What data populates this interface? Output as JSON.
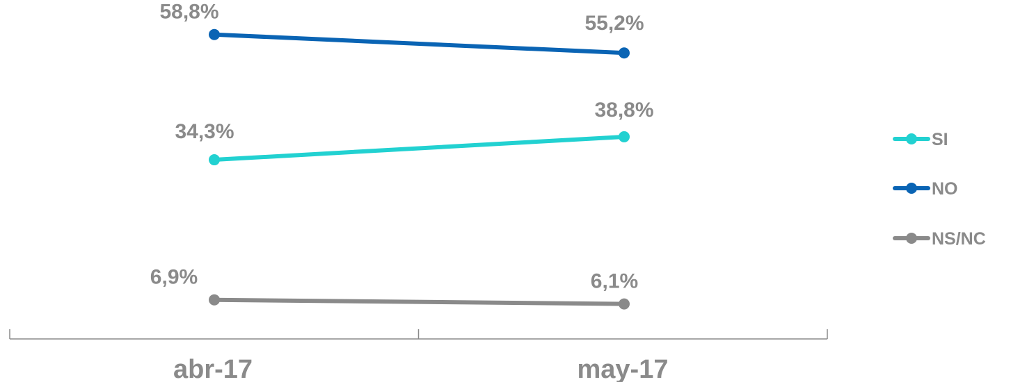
{
  "chart_data": {
    "type": "line",
    "categories": [
      "abr-17",
      "may-17"
    ],
    "series": [
      {
        "name": "SI",
        "values": [
          34.3,
          38.8
        ],
        "labels": [
          "34,3%",
          "38,8%"
        ],
        "color": "#22d1d1"
      },
      {
        "name": "NO",
        "values": [
          58.8,
          55.2
        ],
        "labels": [
          "58,8%",
          "55,2%"
        ],
        "color": "#0a64b4"
      },
      {
        "name": "NS/NC",
        "values": [
          6.9,
          6.1
        ],
        "labels": [
          "6,9%",
          "6,1%"
        ],
        "color": "#8a8a8a"
      }
    ],
    "legend_position": "right",
    "grid": false,
    "axis_color": "#8a8a8a"
  }
}
